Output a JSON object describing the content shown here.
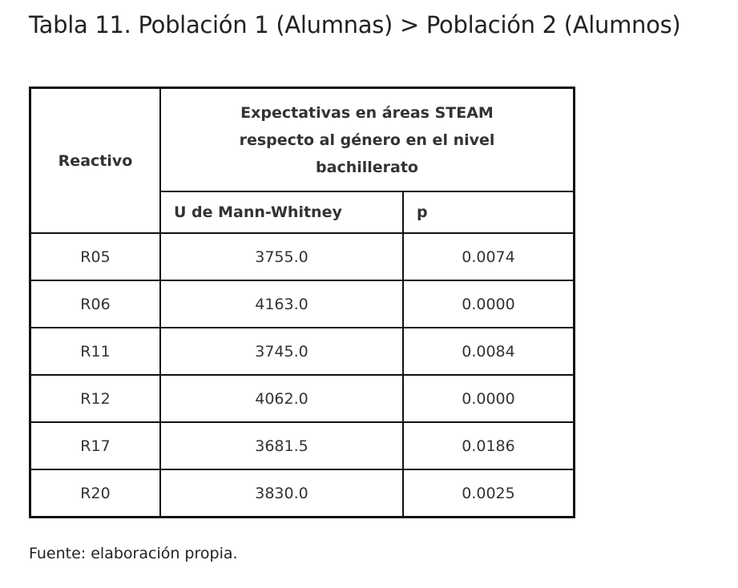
{
  "title": "Tabla 11. Población 1 (Alumnas) > Población 2 (Alumnos)",
  "table": {
    "header_reactivo": "Reactivo",
    "header_group": "Expectativas en áreas STEAM respecto al género en el nivel bachillerato",
    "header_u": "U de Mann-Whitney",
    "header_p": "p",
    "rows": [
      {
        "reactivo": "R05",
        "u": "3755.0",
        "p": "0.0074"
      },
      {
        "reactivo": "R06",
        "u": "4163.0",
        "p": "0.0000"
      },
      {
        "reactivo": "R11",
        "u": "3745.0",
        "p": "0.0084"
      },
      {
        "reactivo": "R12",
        "u": "4062.0",
        "p": "0.0000"
      },
      {
        "reactivo": "R17",
        "u": "3681.5",
        "p": "0.0186"
      },
      {
        "reactivo": "R20",
        "u": "3830.0",
        "p": "0.0025"
      }
    ]
  },
  "source": "Fuente: elaboración propia."
}
